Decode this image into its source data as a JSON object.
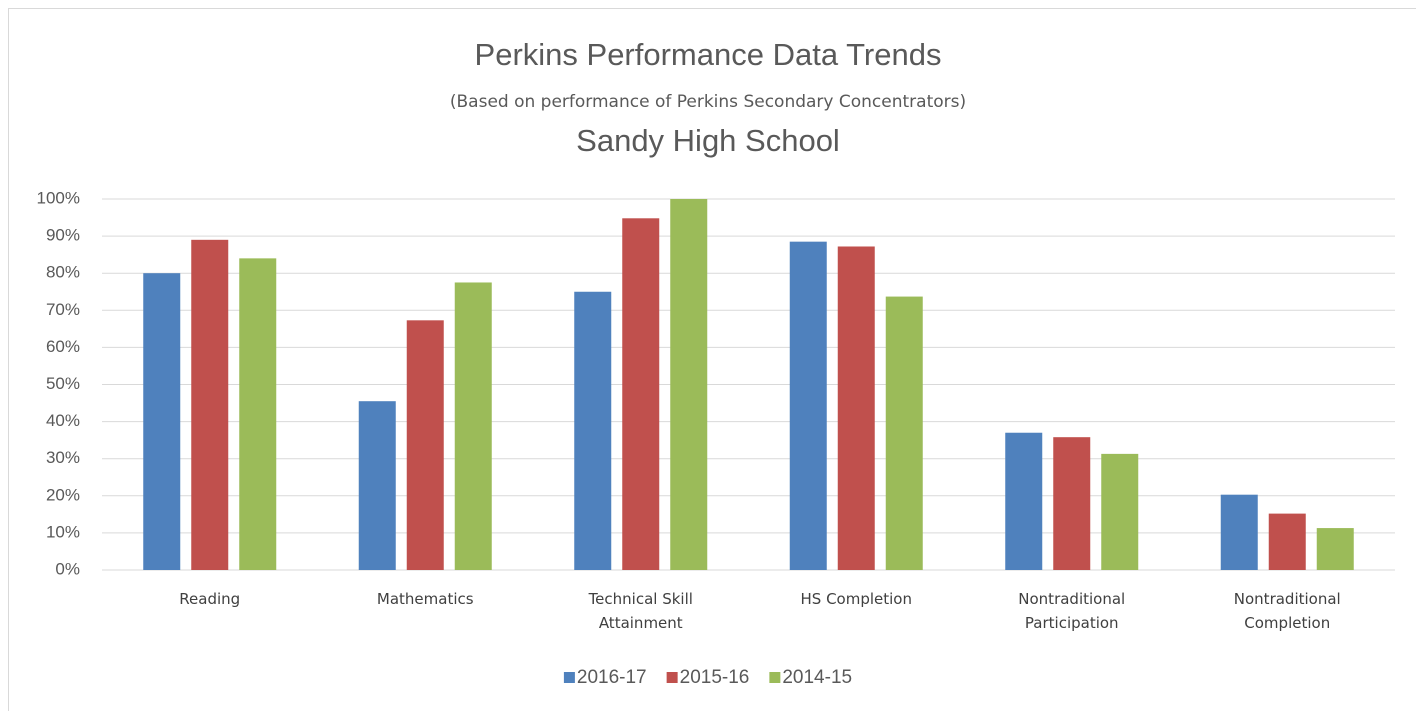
{
  "chart_data": {
    "type": "bar",
    "title": "Perkins Performance Data Trends",
    "subtitle": "(Based on performance of Perkins Secondary Concentrators)",
    "school": "Sandy High School",
    "categories": [
      "Reading",
      "Mathematics",
      "Technical Skill Attainment",
      "HS Completion",
      "Nontraditional Participation",
      "Nontraditional Completion"
    ],
    "series": [
      {
        "name": "2016-17",
        "color": "#4f81bd",
        "values": [
          80,
          45.5,
          75,
          88.5,
          37,
          20.3
        ]
      },
      {
        "name": "2015-16",
        "color": "#c0504d",
        "values": [
          89,
          67.3,
          94.8,
          87.2,
          35.8,
          15.2
        ]
      },
      {
        "name": "2014-15",
        "color": "#9bbb59",
        "values": [
          84,
          77.5,
          100,
          73.7,
          31.3,
          11.3
        ]
      }
    ],
    "ylim": [
      0,
      100
    ],
    "yticks": [
      {
        "value": 0,
        "label": "0%"
      },
      {
        "value": 10,
        "label": "10%"
      },
      {
        "value": 20,
        "label": "20%"
      },
      {
        "value": 30,
        "label": "30%"
      },
      {
        "value": 40,
        "label": "40%"
      },
      {
        "value": 50,
        "label": "50%"
      },
      {
        "value": 60,
        "label": "60%"
      },
      {
        "value": 70,
        "label": "70%"
      },
      {
        "value": 80,
        "label": "80%"
      },
      {
        "value": 90,
        "label": "90%"
      },
      {
        "value": 100,
        "label": "100%"
      }
    ],
    "grid": true,
    "legend": "bottom"
  }
}
